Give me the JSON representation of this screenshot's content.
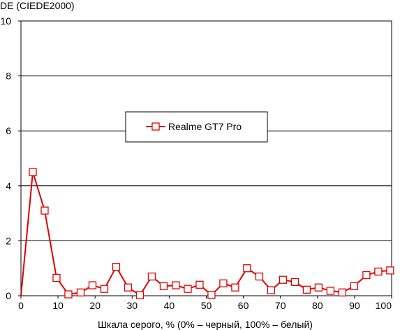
{
  "chart_data": {
    "type": "line",
    "ylabel": "DE (CIEDE2000)",
    "xlabel": "Шкала серого, % (0% – черный, 100% – белый)",
    "xlim": [
      0,
      100
    ],
    "ylim": [
      0,
      10
    ],
    "x_ticks": [
      "0",
      "10",
      "20",
      "30",
      "40",
      "50",
      "60",
      "70",
      "80",
      "90",
      "100"
    ],
    "y_ticks": [
      "0",
      "2",
      "4",
      "6",
      "8",
      "10"
    ],
    "grid": "horizontal",
    "legend_position": "center",
    "series": [
      {
        "name": "Realme GT7 Pro",
        "color": "#e00000",
        "marker": "open-square",
        "x": [
          0,
          3.2,
          6.4,
          9.6,
          12.8,
          16.1,
          19.3,
          22.5,
          25.7,
          28.9,
          32.1,
          35.3,
          38.5,
          41.8,
          45.0,
          48.2,
          51.4,
          54.6,
          57.8,
          61.0,
          64.3,
          67.5,
          70.7,
          73.9,
          77.1,
          80.3,
          83.5,
          86.7,
          89.9,
          93.2,
          96.4,
          99.6
        ],
        "y": [
          0,
          4.5,
          3.1,
          0.65,
          0.05,
          0.12,
          0.38,
          0.25,
          1.05,
          0.3,
          0.02,
          0.7,
          0.35,
          0.38,
          0.25,
          0.4,
          0.03,
          0.45,
          0.3,
          1.0,
          0.7,
          0.2,
          0.58,
          0.5,
          0.22,
          0.3,
          0.18,
          0.12,
          0.35,
          0.75,
          0.88,
          0.92
        ]
      }
    ]
  }
}
